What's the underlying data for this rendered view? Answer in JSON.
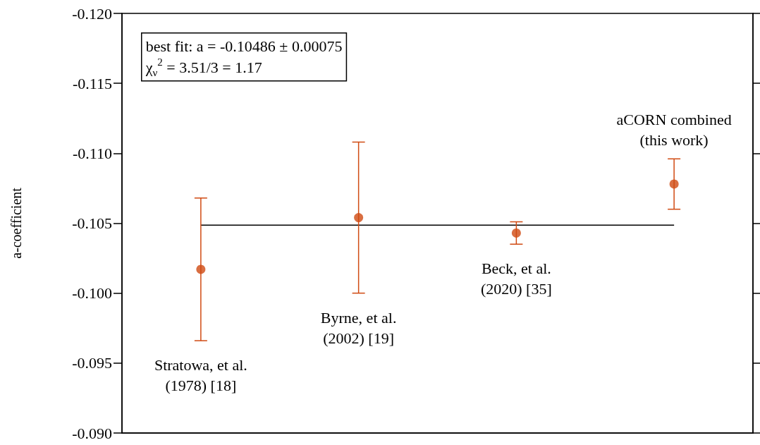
{
  "chart_data": {
    "type": "scatter",
    "ylabel": "a-coefficient",
    "categories": [
      null,
      null,
      null,
      null
    ],
    "ylim": [
      -0.09,
      -0.12
    ],
    "yticks": [
      {
        "value": -0.09,
        "label": "-0.090"
      },
      {
        "value": -0.095,
        "label": "-0.095"
      },
      {
        "value": -0.1,
        "label": "-0.100"
      },
      {
        "value": -0.105,
        "label": "-0.105"
      },
      {
        "value": -0.11,
        "label": "-0.110"
      },
      {
        "value": -0.115,
        "label": "-0.115"
      },
      {
        "value": -0.12,
        "label": "-0.120"
      }
    ],
    "grid": false,
    "marker": "circle",
    "tick_labels": "y",
    "series": [
      {
        "color": "#d04a12",
        "values": [
          -0.1017,
          -0.1054,
          -0.1043,
          -0.1078
        ],
        "errors": [
          0.0051,
          0.0054,
          0.0008,
          0.0018
        ]
      },
      {
        "type": "line",
        "color": "#000000",
        "marker": "none",
        "line_style": "solid",
        "values": [
          -0.10486,
          -0.10486,
          -0.10486,
          -0.10486
        ]
      }
    ],
    "annotations": [
      "best fit: a = -0.10486 ± 0.00075\nχ$_{ν}$$^{2}$ = 3.51/3 = 1.17",
      "Stratowa, et al.\n(1978) [18]",
      "Byrne, et al.\n(2002) [19]",
      "Beck, et al.\n(2020) [35]",
      "aCORN combined\n(this work)"
    ]
  }
}
